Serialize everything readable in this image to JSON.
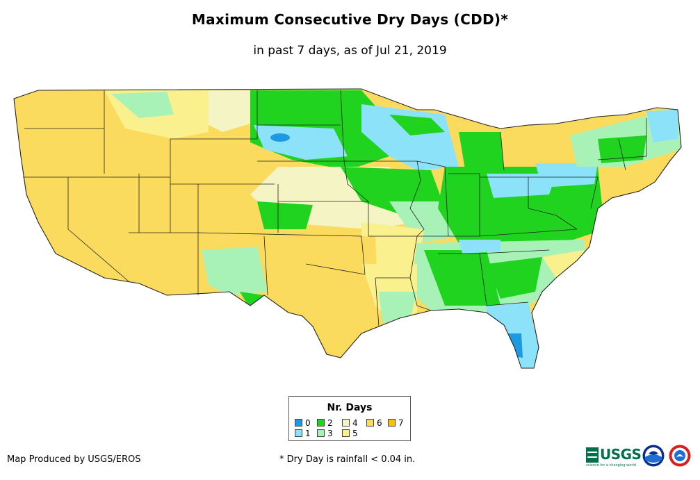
{
  "title": "Maximum Consecutive Dry Days (CDD)*",
  "subtitle": "in past 7 days, as of Jul 21, 2019",
  "legend": {
    "title": "Nr. Days",
    "items": [
      {
        "label": "0",
        "color": "#1e9ae0"
      },
      {
        "label": "2",
        "color": "#1fd31f"
      },
      {
        "label": "4",
        "color": "#f4f4c4"
      },
      {
        "label": "6",
        "color": "#fadb5e"
      },
      {
        "label": "7",
        "color": "#f8c100"
      },
      {
        "label": "1",
        "color": "#8ce2f8"
      },
      {
        "label": "3",
        "color": "#a8f2b8"
      },
      {
        "label": "5",
        "color": "#faf08e"
      }
    ]
  },
  "footer": {
    "producer": "Map Produced by USGS/EROS",
    "note": "* Dry Day is rainfall < 0.04 in."
  },
  "logos": {
    "usgs": "USGS",
    "usgs_tagline": "science for a changing world",
    "noaa_icon": "noaa-logo-icon",
    "nws_icon": "nws-logo-icon"
  }
}
